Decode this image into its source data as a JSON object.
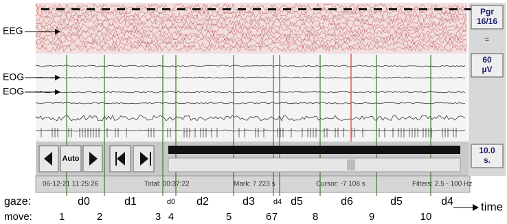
{
  "labels": {
    "eeg": "EEG",
    "eog": [
      "EOG",
      "EOG"
    ]
  },
  "side_panel": {
    "page": [
      "Pgr",
      "16/16"
    ],
    "equals": "=",
    "sensitivity": [
      "60",
      "µV"
    ],
    "timebase": [
      "10.0",
      "s."
    ]
  },
  "controls": {
    "auto": "Auto"
  },
  "status_bar": [
    "06-12-21  11:25:26",
    "Total: 00:37:22",
    "Mark: 7 223 s",
    "Cursor: -7 108 s",
    "Filters: 2.5 - 100 Hz"
  ],
  "gaze": {
    "label": "gaze:",
    "segments": [
      "d0",
      "d1",
      "d0",
      "d2",
      "d3",
      "d4",
      "d5",
      "d6",
      "d5",
      "d4"
    ]
  },
  "move": {
    "label": "move:",
    "markers": [
      "1",
      "2",
      "3",
      "4",
      "5",
      "6",
      "7",
      "8",
      "9",
      "10"
    ]
  },
  "time_label": "time"
}
